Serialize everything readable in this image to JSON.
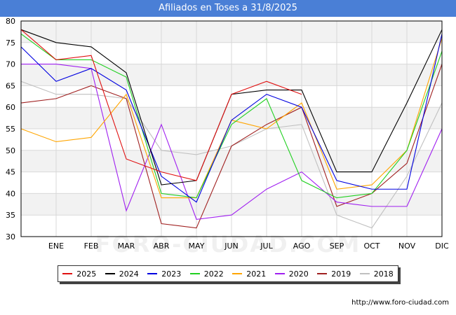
{
  "title": "Afiliados en Toses a 31/8/2025",
  "source": "http://www.foro-ciudad.com",
  "watermark": "FORO-CIUDAD.COM",
  "chart_data": {
    "type": "line",
    "title": "Afiliados en Toses a 31/8/2025",
    "categories": [
      "",
      "ENE",
      "FEB",
      "MAR",
      "ABR",
      "MAY",
      "JUN",
      "JUL",
      "AGO",
      "SEP",
      "OCT",
      "NOV",
      "DIC"
    ],
    "ylim": [
      30,
      80
    ],
    "yticks": [
      30,
      35,
      40,
      45,
      50,
      55,
      60,
      65,
      70,
      75,
      80
    ],
    "grid": true,
    "legend_position": "bottom",
    "series": [
      {
        "name": "2025",
        "color": "#e01010",
        "values": [
          78,
          71,
          72,
          48,
          45,
          43,
          63,
          66,
          63,
          null,
          null,
          null,
          null
        ]
      },
      {
        "name": "2024",
        "color": "#000000",
        "values": [
          78,
          75,
          74,
          68,
          42,
          43,
          63,
          64,
          64,
          45,
          45,
          61,
          78
        ]
      },
      {
        "name": "2023",
        "color": "#0000e0",
        "values": [
          74,
          66,
          69,
          64,
          44,
          38,
          57,
          63,
          60,
          43,
          41,
          41,
          77
        ]
      },
      {
        "name": "2022",
        "color": "#20d020",
        "values": [
          77,
          71,
          71,
          67,
          40,
          39,
          56,
          62,
          43,
          39,
          40,
          50,
          73
        ]
      },
      {
        "name": "2021",
        "color": "#ffa500",
        "values": [
          55,
          52,
          53,
          63,
          39,
          39,
          57,
          55,
          61,
          41,
          42,
          50,
          76
        ]
      },
      {
        "name": "2020",
        "color": "#a020f0",
        "values": [
          70,
          70,
          69,
          36,
          56,
          34,
          35,
          41,
          45,
          38,
          37,
          37,
          55
        ]
      },
      {
        "name": "2019",
        "color": "#a02020",
        "values": [
          61,
          62,
          65,
          62,
          33,
          32,
          51,
          56,
          60,
          37,
          40,
          47,
          70
        ]
      },
      {
        "name": "2018",
        "color": "#c0c0c0",
        "values": [
          66,
          63,
          63,
          62,
          50,
          49,
          51,
          55,
          56,
          35,
          32,
          44,
          61
        ]
      }
    ]
  }
}
